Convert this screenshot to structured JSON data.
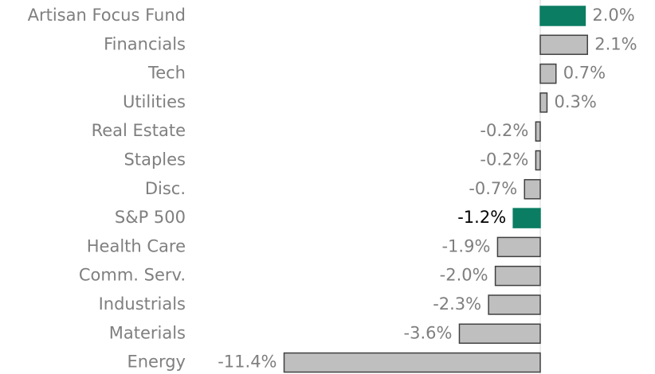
{
  "chart_data": {
    "type": "bar",
    "orientation": "horizontal",
    "categories": [
      "Artisan Focus Fund",
      "Financials",
      "Tech",
      "Utilities",
      "Real Estate",
      "Staples",
      "Disc.",
      "S&P 500",
      "Health Care",
      "Comm. Serv.",
      "Industrials",
      "Materials",
      "Energy"
    ],
    "values": [
      2.0,
      2.1,
      0.7,
      0.3,
      -0.2,
      -0.2,
      -0.7,
      -1.2,
      -1.9,
      -2.0,
      -2.3,
      -3.6,
      -11.4
    ],
    "value_labels": [
      "2.0%",
      "2.1%",
      "0.7%",
      "0.3%",
      "-0.2%",
      "-0.2%",
      "-0.7%",
      "-1.2%",
      "-1.9%",
      "-2.0%",
      "-2.3%",
      "-3.6%",
      "-11.4%"
    ],
    "colors": [
      "#0b7d63",
      "#bfbfbf",
      "#bfbfbf",
      "#bfbfbf",
      "#bfbfbf",
      "#bfbfbf",
      "#bfbfbf",
      "#0b7d63",
      "#bfbfbf",
      "#bfbfbf",
      "#bfbfbf",
      "#bfbfbf",
      "#bfbfbf"
    ]
  }
}
